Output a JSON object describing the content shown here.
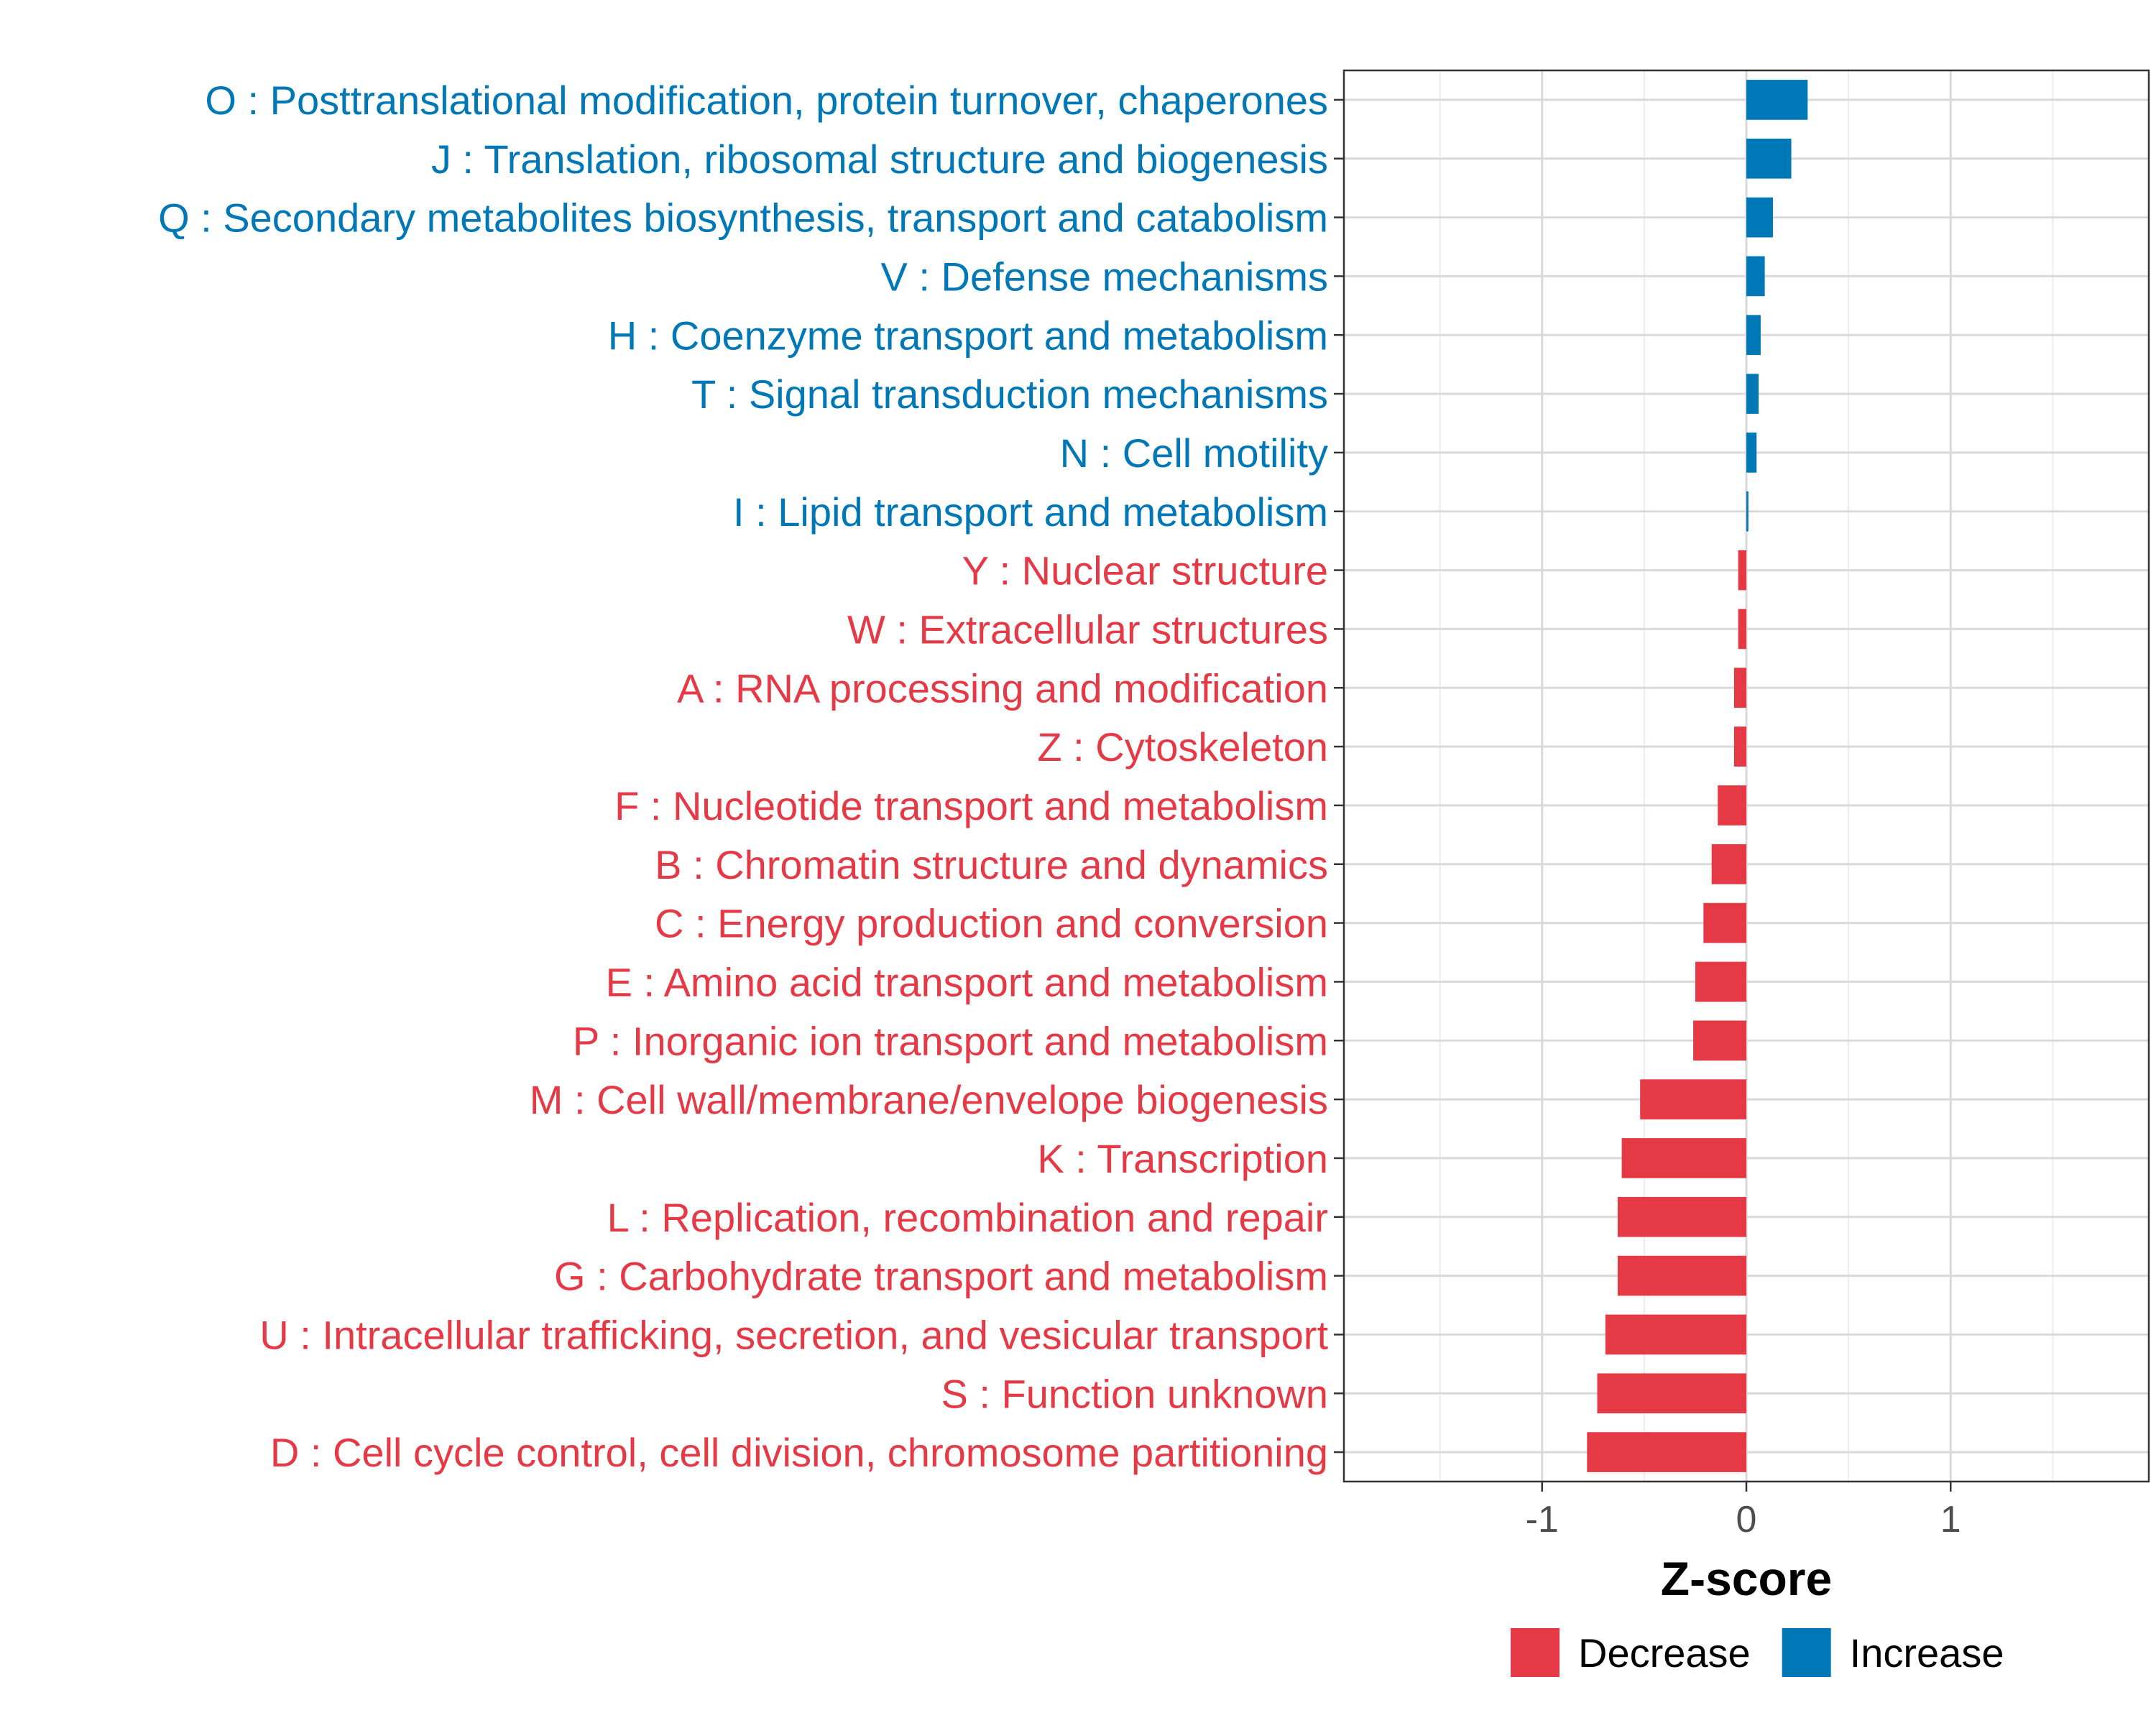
{
  "chart_data": {
    "type": "bar",
    "orientation": "horizontal",
    "title": "",
    "xlabel": "Z-score",
    "ylabel": "",
    "xlim": [
      -1.97,
      1.97
    ],
    "x_ticks": [
      -1,
      0,
      1
    ],
    "x_tick_labels": [
      "-1",
      "0",
      "1"
    ],
    "grid": true,
    "legend_position": "bottom",
    "colors": {
      "Decrease": "#e63946",
      "Increase": "#0077b6"
    },
    "legend": [
      {
        "key": "Decrease",
        "label": "Decrease"
      },
      {
        "key": "Increase",
        "label": "Increase"
      }
    ],
    "categories": [
      "O : Posttranslational modification, protein turnover, chaperones",
      "J : Translation, ribosomal structure and biogenesis",
      "Q : Secondary metabolites biosynthesis, transport and catabolism",
      "V : Defense mechanisms",
      "H : Coenzyme transport and metabolism",
      "T : Signal transduction mechanisms",
      "N : Cell motility",
      "I : Lipid transport and metabolism",
      "Y : Nuclear structure",
      "W : Extracellular structures",
      "A : RNA processing and modification",
      "Z : Cytoskeleton",
      "F : Nucleotide transport and metabolism",
      "B : Chromatin structure and dynamics",
      "C : Energy production and conversion",
      "E : Amino acid transport and metabolism",
      "P : Inorganic ion transport and metabolism",
      "M : Cell wall/membrane/envelope biogenesis",
      "K : Transcription",
      "L : Replication, recombination and repair",
      "G : Carbohydrate transport and metabolism",
      "U : Intracellular trafficking, secretion, and vesicular transport",
      "S : Function unknown",
      "D : Cell cycle control, cell division, chromosome partitioning"
    ],
    "values": [
      0.3,
      0.22,
      0.13,
      0.09,
      0.07,
      0.06,
      0.05,
      0.01,
      -0.04,
      -0.04,
      -0.06,
      -0.06,
      -0.14,
      -0.17,
      -0.21,
      -0.25,
      -0.26,
      -0.52,
      -0.61,
      -0.63,
      -0.63,
      -0.69,
      -0.73,
      -0.78
    ],
    "groups": [
      "Increase",
      "Increase",
      "Increase",
      "Increase",
      "Increase",
      "Increase",
      "Increase",
      "Increase",
      "Decrease",
      "Decrease",
      "Decrease",
      "Decrease",
      "Decrease",
      "Decrease",
      "Decrease",
      "Decrease",
      "Decrease",
      "Decrease",
      "Decrease",
      "Decrease",
      "Decrease",
      "Decrease",
      "Decrease",
      "Decrease"
    ]
  }
}
